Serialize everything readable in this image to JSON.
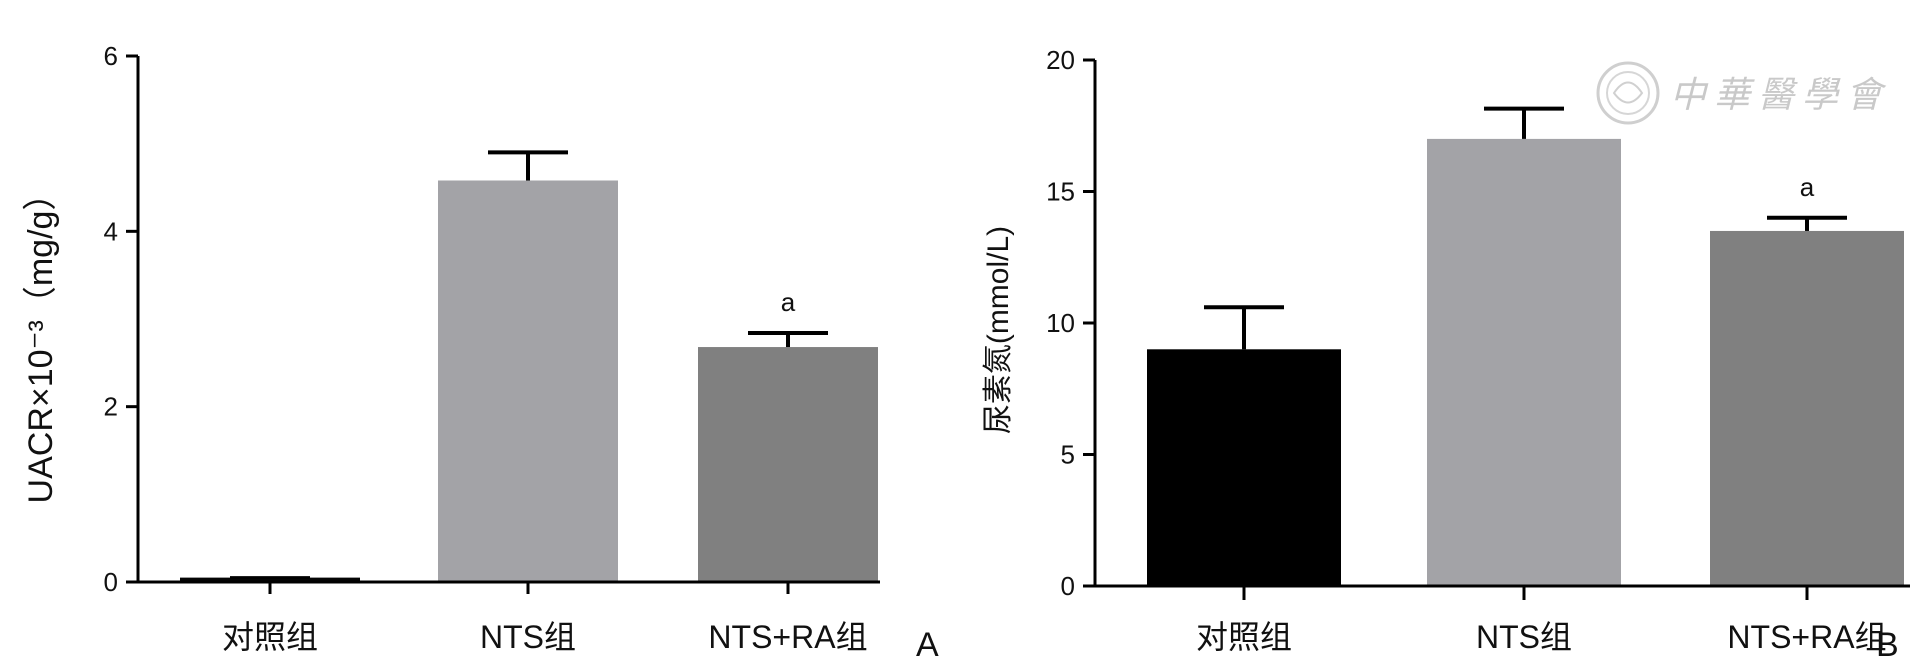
{
  "chart_data": [
    {
      "type": "bar",
      "panel_label": "A",
      "ylabel": "UACR×10⁻³（mg/g）",
      "categories": [
        "对照组",
        "NTS组",
        "NTS+RA组"
      ],
      "values": [
        0.05,
        4.58,
        2.68
      ],
      "error": [
        0.0,
        0.32,
        0.16
      ],
      "colors": [
        "#050505",
        "#a3a3a7",
        "#808080"
      ],
      "annotations": [
        "",
        "",
        "a"
      ],
      "ylim": [
        0,
        6
      ],
      "yticks": [
        0,
        2,
        4,
        6
      ],
      "grid": false
    },
    {
      "type": "bar",
      "panel_label": "B",
      "ylabel": "尿素氮(mmol/L)",
      "categories": [
        "对照组",
        "NTS组",
        "NTS+RA组"
      ],
      "values": [
        9.0,
        17.0,
        13.5
      ],
      "error": [
        1.6,
        1.15,
        0.5
      ],
      "colors": [
        "#000000",
        "#a3a3a7",
        "#808080"
      ],
      "annotations": [
        "",
        "",
        "a"
      ],
      "ylim": [
        0,
        20
      ],
      "yticks": [
        0,
        5,
        10,
        15,
        20
      ],
      "grid": false
    }
  ],
  "watermark": {
    "text": "中華醫學會",
    "icon": "society-seal-icon"
  }
}
